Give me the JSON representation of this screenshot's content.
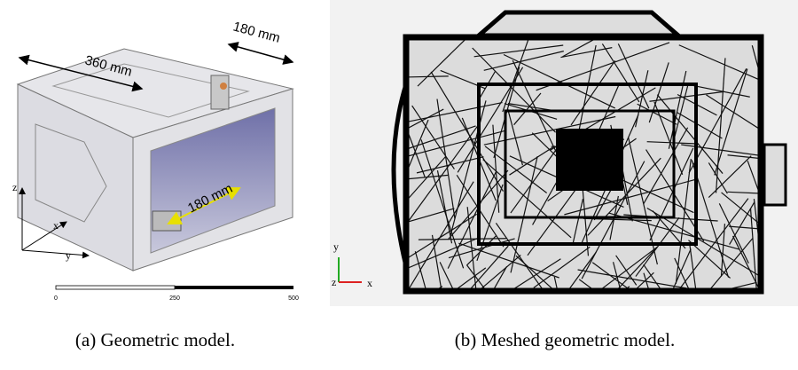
{
  "panels": [
    {
      "labels": {
        "length": "360 mm",
        "width": "180 mm",
        "depth": "180 mm"
      },
      "axes": {
        "z": "z",
        "x": "x",
        "y": "y"
      },
      "scale_bar": [
        0,
        250,
        500
      ],
      "caption": "(a) Geometric model."
    },
    {
      "axes": {
        "y": "y",
        "z": "z",
        "x": "x"
      },
      "caption": "(b) Meshed geometric model."
    }
  ]
}
